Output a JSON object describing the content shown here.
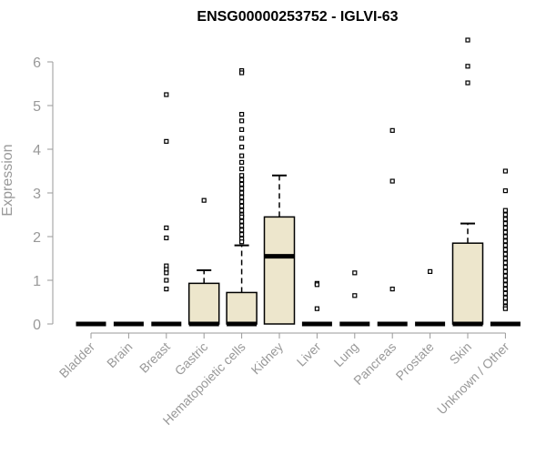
{
  "chart_data": {
    "type": "box",
    "title": "ENSG00000253752 - IGLVI-63",
    "xlabel": "",
    "ylabel": "Expression",
    "ylim": [
      0,
      6.6
    ],
    "yticks": [
      0,
      1,
      2,
      3,
      4,
      5,
      6
    ],
    "grid": false,
    "box_fill": "#ede6cc",
    "categories": [
      "Bladder",
      "Brain",
      "Breast",
      "Gastric",
      "Hematopoietic cells",
      "Kidney",
      "Liver",
      "Lung",
      "Pancreas",
      "Prostate",
      "Skin",
      "Unknown / Other"
    ],
    "boxes": [
      {
        "q1": 0,
        "median": 0,
        "q3": 0,
        "whisker_low": 0,
        "whisker_high": 0,
        "outliers": []
      },
      {
        "q1": 0,
        "median": 0,
        "q3": 0,
        "whisker_low": 0,
        "whisker_high": 0,
        "outliers": []
      },
      {
        "q1": 0,
        "median": 0,
        "q3": 0,
        "whisker_low": 0,
        "whisker_high": 0,
        "outliers": [
          5.25,
          4.18,
          2.2,
          1.97,
          1.33,
          1.25,
          1.17,
          1.0,
          0.8
        ]
      },
      {
        "q1": 0,
        "median": 0,
        "q3": 0.93,
        "whisker_low": 0,
        "whisker_high": 1.23,
        "outliers": [
          2.83
        ]
      },
      {
        "q1": 0,
        "median": 0,
        "q3": 0.72,
        "whisker_low": 0,
        "whisker_high": 1.8,
        "outliers": [
          5.8,
          5.75,
          4.8,
          4.65,
          4.45,
          4.25,
          4.05,
          3.85,
          3.7,
          3.55,
          3.4,
          3.3,
          3.2,
          3.1,
          3.0,
          2.9,
          2.8,
          2.7,
          2.6,
          2.5,
          2.45,
          2.35,
          2.25,
          2.15,
          2.05,
          1.95,
          1.88
        ]
      },
      {
        "q1": 0,
        "median": 1.55,
        "q3": 2.45,
        "whisker_low": 0,
        "whisker_high": 3.4,
        "outliers": []
      },
      {
        "q1": 0,
        "median": 0,
        "q3": 0,
        "whisker_low": 0,
        "whisker_high": 0,
        "outliers": [
          0.93,
          0.9,
          0.35
        ]
      },
      {
        "q1": 0,
        "median": 0,
        "q3": 0,
        "whisker_low": 0,
        "whisker_high": 0,
        "outliers": [
          1.17,
          0.65
        ]
      },
      {
        "q1": 0,
        "median": 0,
        "q3": 0,
        "whisker_low": 0,
        "whisker_high": 0,
        "outliers": [
          4.43,
          3.27,
          0.8
        ]
      },
      {
        "q1": 0,
        "median": 0,
        "q3": 0,
        "whisker_low": 0,
        "whisker_high": 0,
        "outliers": [
          1.2
        ]
      },
      {
        "q1": 0,
        "median": 0,
        "q3": 1.85,
        "whisker_low": 0,
        "whisker_high": 2.3,
        "outliers": [
          6.5,
          5.9,
          5.52
        ]
      },
      {
        "q1": 0,
        "median": 0,
        "q3": 0,
        "whisker_low": 0,
        "whisker_high": 0,
        "outliers": [
          3.5,
          3.05,
          2.6,
          2.5,
          2.4,
          2.3,
          2.2,
          2.1,
          2.0,
          1.9,
          1.8,
          1.7,
          1.6,
          1.5,
          1.4,
          1.3,
          1.2,
          1.1,
          1.0,
          0.9,
          0.8,
          0.7,
          0.6,
          0.5,
          0.4,
          0.35
        ]
      }
    ]
  }
}
